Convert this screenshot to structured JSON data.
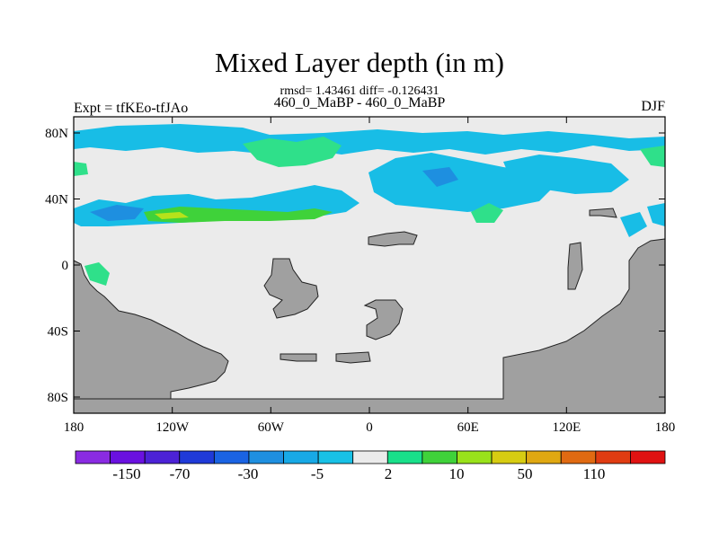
{
  "header": {
    "title": "Mixed Layer depth (in m)",
    "stats": "rmsd= 1.43461 diff= -0.126431",
    "comparison": "460_0_MaBP - 460_0_MaBP",
    "experiment": "Expt = tfKEo-tfJAo",
    "season": "DJF"
  },
  "map": {
    "x_ticks": [
      "180",
      "120W",
      "60W",
      "0",
      "60E",
      "120E",
      "180"
    ],
    "y_ticks": [
      "80N",
      "40N",
      "0",
      "40S",
      "80S"
    ],
    "colors": {
      "land": "#a0a0a0",
      "neutral": "#ebebeb",
      "light_blue": "#18bde6",
      "mid_blue": "#1e8fe0",
      "green_light": "#2fe08a",
      "green": "#3fd23a",
      "yellow_green": "#b7e21a"
    }
  },
  "colorbar": {
    "colors": [
      "#8a2be2",
      "#6a11e0",
      "#4c22d6",
      "#1f3ad8",
      "#1a63e3",
      "#1e8fe0",
      "#18a9e6",
      "#18c1e6",
      "#ebebeb",
      "#19e08a",
      "#3fd23a",
      "#99e21a",
      "#d7cc12",
      "#e0a812",
      "#e06a12",
      "#e03c12",
      "#e01212"
    ],
    "labels": [
      "-150",
      "-70",
      "-30",
      "-5",
      "2",
      "10",
      "50",
      "110"
    ]
  }
}
